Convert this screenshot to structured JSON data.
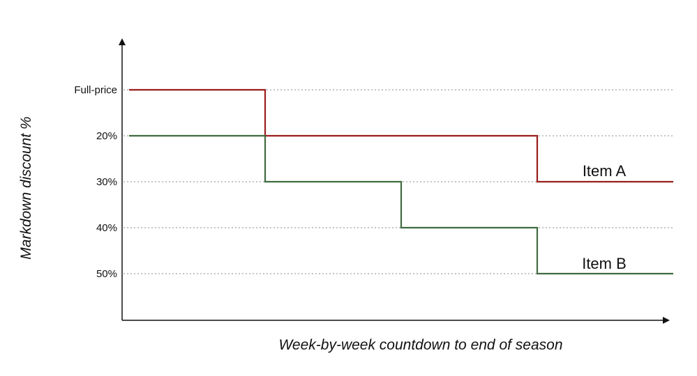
{
  "chart_data": {
    "type": "line",
    "step": true,
    "xlabel": "Week-by-week countdown to end of season",
    "ylabel": "Markdown discount %",
    "y_categories": [
      "Full-price",
      "20%",
      "30%",
      "40%",
      "50%"
    ],
    "xlim": [
      0,
      8
    ],
    "grid": "horizontal-dotted",
    "legend": "inline labels at right",
    "series": [
      {
        "name": "Item A",
        "color": "#9b1c1c",
        "points": [
          [
            0,
            "Full-price"
          ],
          [
            2,
            "Full-price"
          ],
          [
            2,
            "20%"
          ],
          [
            6,
            "20%"
          ],
          [
            6,
            "30%"
          ],
          [
            8,
            "30%"
          ]
        ]
      },
      {
        "name": "Item B",
        "color": "#3f6b3f",
        "points": [
          [
            0,
            "20%"
          ],
          [
            2,
            "20%"
          ],
          [
            2,
            "30%"
          ],
          [
            4,
            "30%"
          ],
          [
            4,
            "40%"
          ],
          [
            6,
            "40%"
          ],
          [
            6,
            "50%"
          ],
          [
            8,
            "50%"
          ]
        ]
      }
    ]
  },
  "colors": {
    "axis": "#111111",
    "grid": "#888888"
  }
}
